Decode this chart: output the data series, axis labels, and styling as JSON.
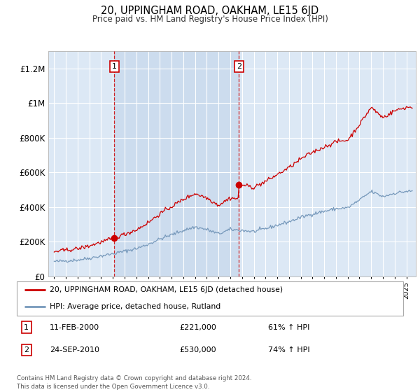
{
  "title": "20, UPPINGHAM ROAD, OAKHAM, LE15 6JD",
  "subtitle": "Price paid vs. HM Land Registry's House Price Index (HPI)",
  "sale1_date": "11-FEB-2000",
  "sale1_price": 221000,
  "sale1_price_str": "£221,000",
  "sale1_hpi": "61% ↑ HPI",
  "sale2_date": "24-SEP-2010",
  "sale2_price": 530000,
  "sale2_price_str": "£530,000",
  "sale2_hpi": "74% ↑ HPI",
  "legend_red": "20, UPPINGHAM ROAD, OAKHAM, LE15 6JD (detached house)",
  "legend_blue": "HPI: Average price, detached house, Rutland",
  "footnote": "Contains HM Land Registry data © Crown copyright and database right 2024.\nThis data is licensed under the Open Government Licence v3.0.",
  "ylim": [
    0,
    1300000
  ],
  "yticks": [
    0,
    200000,
    400000,
    600000,
    800000,
    1000000,
    1200000
  ],
  "ytick_labels": [
    "£0",
    "£200K",
    "£400K",
    "£600K",
    "£800K",
    "£1M",
    "£1.2M"
  ],
  "red_color": "#cc0000",
  "blue_color": "#7799bb",
  "sale1_x": 2000.12,
  "sale2_x": 2010.73,
  "plot_bg": "#dce8f5",
  "grid_color": "#ffffff",
  "hatch_color": "#c8d8ec"
}
